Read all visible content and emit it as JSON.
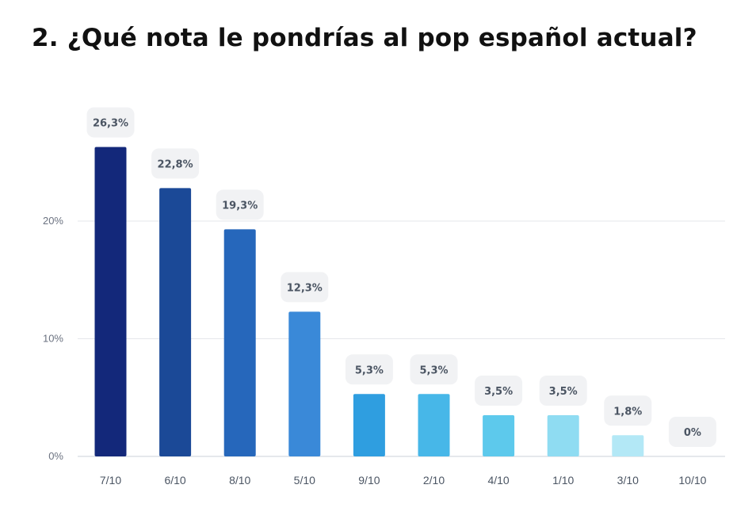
{
  "title": "2. ¿Qué nota le pondrías al pop español actual?",
  "chart_data": {
    "type": "bar",
    "categories": [
      "7/10",
      "6/10",
      "8/10",
      "5/10",
      "9/10",
      "2/10",
      "4/10",
      "1/10",
      "3/10",
      "10/10"
    ],
    "values": [
      26.3,
      22.8,
      19.3,
      12.3,
      5.3,
      5.3,
      3.5,
      3.5,
      1.8,
      0
    ],
    "data_labels": [
      "26,3%",
      "22,8%",
      "19,3%",
      "12,3%",
      "5,3%",
      "5,3%",
      "3,5%",
      "3,5%",
      "1,8%",
      "0%"
    ],
    "bar_colors": [
      "#13287a",
      "#1b4997",
      "#2667bb",
      "#3a89d8",
      "#2f9ee0",
      "#47b7e8",
      "#5dc9ec",
      "#8fdcf2",
      "#b3e8f6",
      "#d6f3fa"
    ],
    "yticks": [
      0,
      10,
      20
    ],
    "ytick_labels": [
      "0%",
      "10%",
      "20%"
    ],
    "ylim": [
      0,
      27
    ],
    "xlabel": "",
    "ylabel": "",
    "grid": true
  },
  "colors": {
    "grid": "#e5e7eb",
    "axis": "#cbd0d8",
    "label_bg": "#f1f2f4"
  }
}
